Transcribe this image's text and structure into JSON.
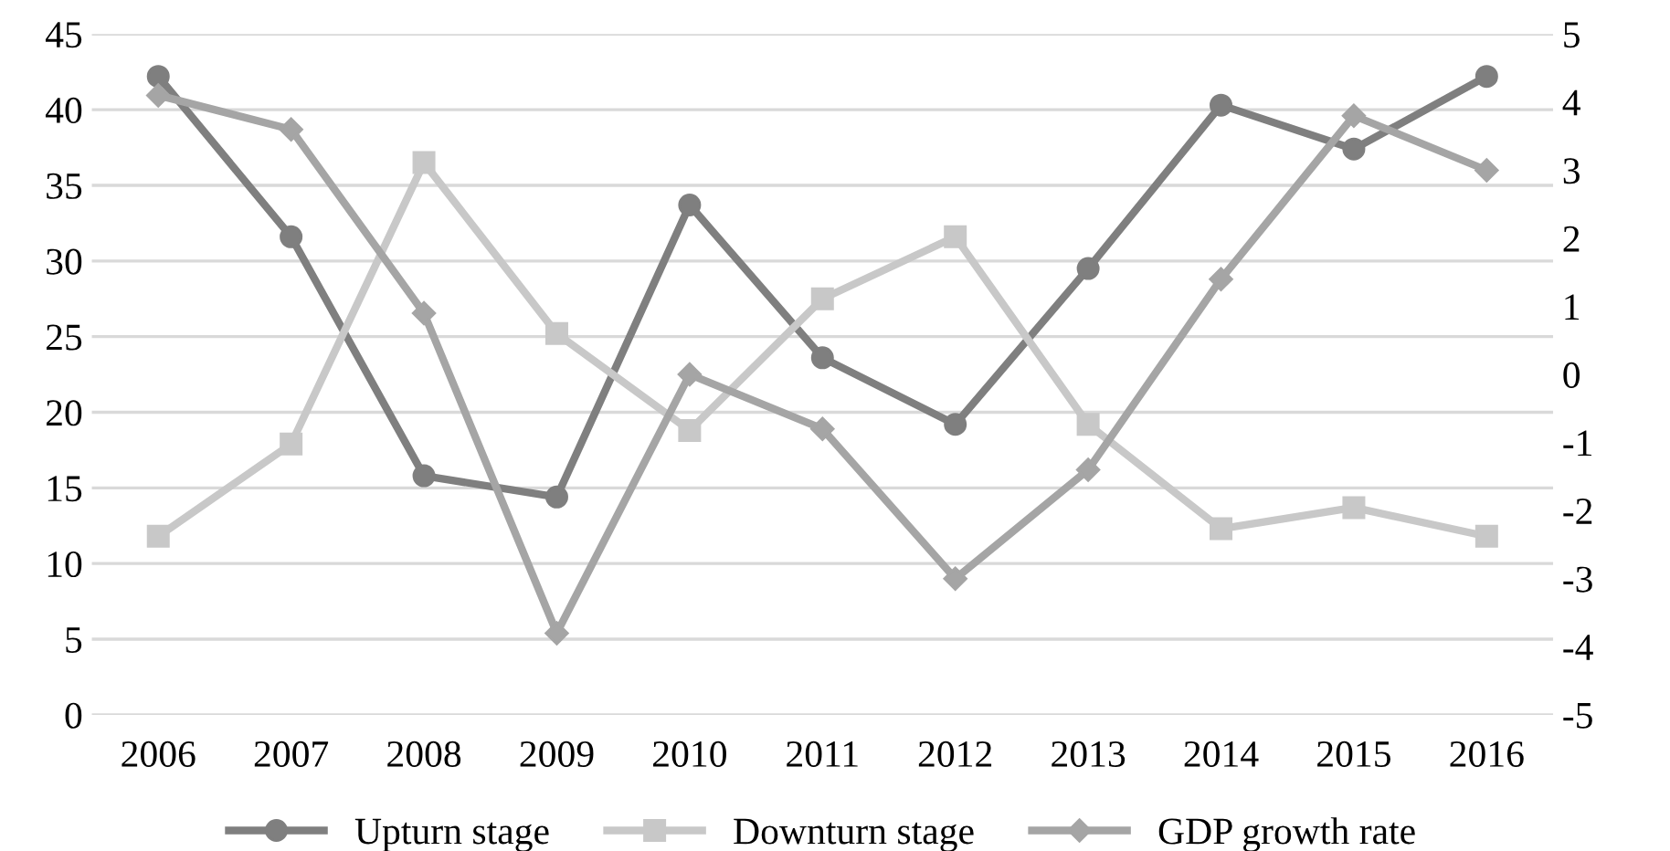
{
  "chart_data": {
    "type": "line",
    "categories": [
      "2006",
      "2007",
      "2008",
      "2009",
      "2010",
      "2011",
      "2012",
      "2013",
      "2014",
      "2015",
      "2016"
    ],
    "series": [
      {
        "name": "Upturn stage",
        "color": "#7f7f7f",
        "marker": "circle",
        "values": [
          42.2,
          31.6,
          15.8,
          14.4,
          33.7,
          23.6,
          19.2,
          29.5,
          40.3,
          37.4,
          42.2
        ]
      },
      {
        "name": "Downturn stage",
        "color": "#c8c8c8",
        "marker": "square",
        "values": [
          11.8,
          17.9,
          36.5,
          25.2,
          18.8,
          27.5,
          31.6,
          19.2,
          12.3,
          13.7,
          11.8
        ]
      },
      {
        "name": "GDP growth rate",
        "color": "#a5a5a5",
        "marker": "diamond",
        "axis": "y2",
        "values": [
          4.1,
          3.6,
          0.9,
          -3.8,
          0.0,
          -0.8,
          -3.0,
          -1.4,
          1.4,
          3.8,
          3.0
        ]
      }
    ],
    "ylim": [
      0,
      45
    ],
    "yticks": [
      0,
      5,
      10,
      15,
      20,
      25,
      30,
      35,
      40,
      45
    ],
    "y2lim": [
      -5,
      5
    ],
    "y2ticks": [
      -5,
      -4,
      -3,
      -2,
      -1,
      0,
      1,
      2,
      3,
      4,
      5
    ],
    "grid": "y",
    "legend": "bottom",
    "line_style": "solid"
  }
}
